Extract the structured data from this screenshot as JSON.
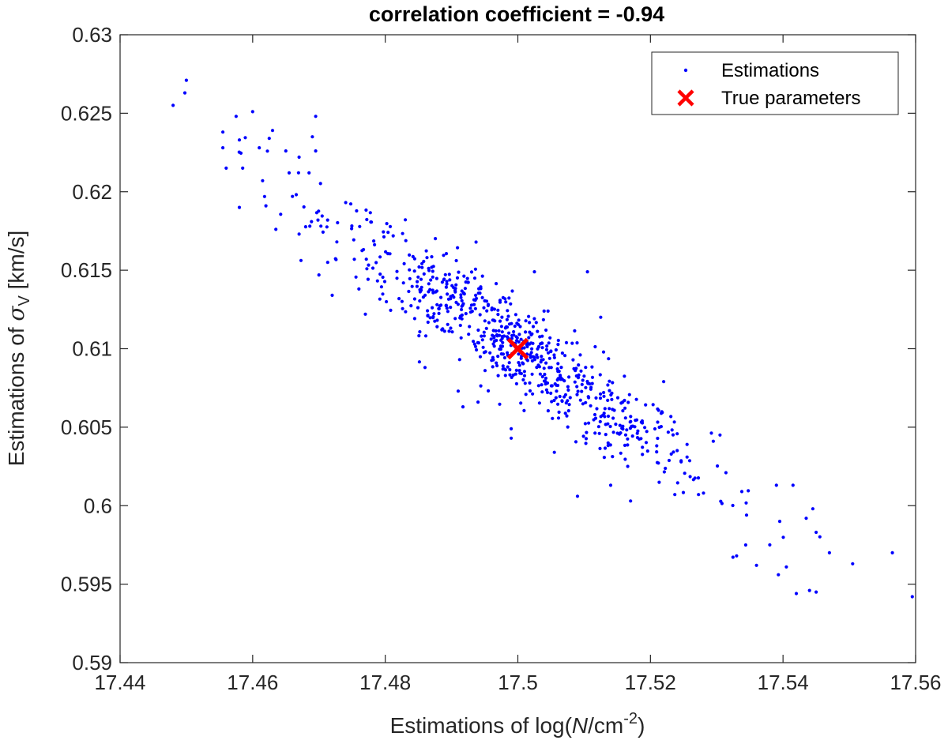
{
  "chart_data": {
    "type": "scatter",
    "title": "correlation coefficient = -0.94",
    "xlabel": {
      "prefix": "Estimations of log(",
      "var": "N",
      "unit": "/cm",
      "exponent": "-2",
      "suffix": ")"
    },
    "ylabel": {
      "prefix": "Estimations of ",
      "var": "σ",
      "subscript": "V",
      "suffix": " [km/s]"
    },
    "xlim": [
      17.44,
      17.56
    ],
    "ylim": [
      0.59,
      0.63
    ],
    "xticks": [
      17.44,
      17.46,
      17.48,
      17.5,
      17.52,
      17.54,
      17.56
    ],
    "xtick_labels": [
      "17.44",
      "17.46",
      "17.48",
      "17.5",
      "17.52",
      "17.54",
      "17.56"
    ],
    "yticks": [
      0.59,
      0.595,
      0.6,
      0.605,
      0.61,
      0.615,
      0.62,
      0.625,
      0.63
    ],
    "ytick_labels": [
      "0.59",
      "0.595",
      "0.6",
      "0.605",
      "0.61",
      "0.615",
      "0.62",
      "0.625",
      "0.63"
    ],
    "grid": false,
    "legend": {
      "position": "top-right",
      "entries": [
        "Estimations",
        "True parameters"
      ]
    },
    "series": [
      {
        "name": "Estimations",
        "color": "#0000ff",
        "marker": "dot",
        "n_points": 800,
        "center": [
          17.5,
          0.61
        ],
        "correlation": -0.94,
        "std": [
          0.0185,
          0.0057
        ],
        "points": [
          [
            17.448,
            0.6255
          ],
          [
            17.45,
            0.6271
          ],
          [
            17.4555,
            0.6238
          ],
          [
            17.4555,
            0.6228
          ],
          [
            17.456,
            0.6215
          ],
          [
            17.4575,
            0.6248
          ],
          [
            17.458,
            0.619
          ],
          [
            17.458,
            0.6233
          ],
          [
            17.4585,
            0.6215
          ],
          [
            17.46,
            0.6251
          ],
          [
            17.461,
            0.6228
          ],
          [
            17.4615,
            0.6207
          ],
          [
            17.462,
            0.6191
          ],
          [
            17.4625,
            0.6234
          ],
          [
            17.463,
            0.6239
          ],
          [
            17.4635,
            0.6176
          ],
          [
            17.465,
            0.6226
          ],
          [
            17.4655,
            0.6212
          ],
          [
            17.466,
            0.6197
          ],
          [
            17.467,
            0.6173
          ],
          [
            17.467,
            0.6222
          ],
          [
            17.4685,
            0.6212
          ],
          [
            17.469,
            0.6235
          ],
          [
            17.4695,
            0.6248
          ],
          [
            17.4695,
            0.6226
          ],
          [
            17.47,
            0.6147
          ],
          [
            17.472,
            0.6134
          ],
          [
            17.477,
            0.6122
          ],
          [
            17.486,
            0.6088
          ],
          [
            17.491,
            0.6073
          ],
          [
            17.494,
            0.6066
          ],
          [
            17.499,
            0.6043
          ],
          [
            17.499,
            0.6049
          ],
          [
            17.5025,
            0.6149
          ],
          [
            17.5055,
            0.6034
          ],
          [
            17.509,
            0.6006
          ],
          [
            17.5105,
            0.6149
          ],
          [
            17.5125,
            0.612
          ],
          [
            17.514,
            0.6013
          ],
          [
            17.517,
            0.6003
          ],
          [
            17.522,
            0.6079
          ],
          [
            17.528,
            0.6008
          ],
          [
            17.5305,
            0.6045
          ],
          [
            17.533,
            0.5968
          ],
          [
            17.5345,
            0.5994
          ],
          [
            17.536,
            0.5962
          ],
          [
            17.538,
            0.5975
          ],
          [
            17.539,
            0.6013
          ],
          [
            17.5395,
            0.599
          ],
          [
            17.5405,
            0.5961
          ],
          [
            17.5415,
            0.6013
          ],
          [
            17.542,
            0.5944
          ],
          [
            17.5435,
            0.5992
          ],
          [
            17.544,
            0.5946
          ],
          [
            17.5445,
            0.5998
          ],
          [
            17.545,
            0.5945
          ],
          [
            17.545,
            0.5983
          ],
          [
            17.547,
            0.597
          ],
          [
            17.5505,
            0.5963
          ],
          [
            17.5565,
            0.597
          ],
          [
            17.5595,
            0.5942
          ]
        ]
      },
      {
        "name": "True parameters",
        "color": "#ff0000",
        "marker": "x",
        "points": [
          [
            17.5,
            0.61
          ]
        ]
      }
    ]
  }
}
